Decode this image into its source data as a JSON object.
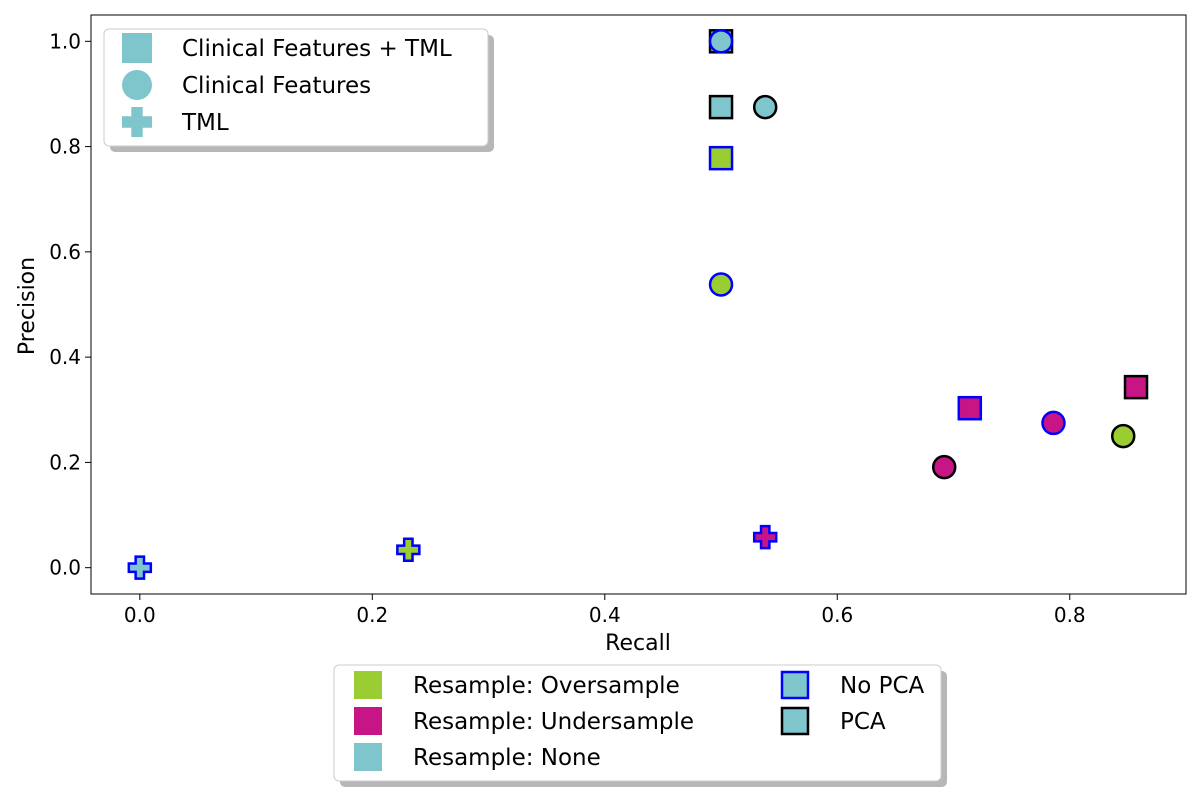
{
  "chart_data": {
    "type": "scatter",
    "xlabel": "Recall",
    "ylabel": "Precision",
    "xlim": [
      -0.042,
      0.9
    ],
    "ylim": [
      -0.05,
      1.05
    ],
    "xticks": [
      0.0,
      0.2,
      0.4,
      0.6,
      0.8
    ],
    "yticks": [
      0.0,
      0.2,
      0.4,
      0.6,
      0.8,
      1.0
    ],
    "xtick_labels": [
      "0.0",
      "0.2",
      "0.4",
      "0.6",
      "0.8"
    ],
    "ytick_labels": [
      "0.0",
      "0.2",
      "0.4",
      "0.6",
      "0.8",
      "1.0"
    ],
    "grid": false,
    "colors": {
      "oversample": "#9acd32",
      "undersample": "#c71585",
      "none": "#7ec5cc",
      "no_pca_edge": "#0000ff",
      "pca_edge": "#000000"
    },
    "points": [
      {
        "x": 0.0,
        "y": 0.0,
        "marker": "plus",
        "resample": "none",
        "pca": "no"
      },
      {
        "x": 0.231,
        "y": 0.034,
        "marker": "plus",
        "resample": "oversample",
        "pca": "no"
      },
      {
        "x": 0.538,
        "y": 0.058,
        "marker": "plus",
        "resample": "undersample",
        "pca": "no"
      },
      {
        "x": 0.5,
        "y": 1.0,
        "marker": "square",
        "resample": "none",
        "pca": "yes"
      },
      {
        "x": 0.5,
        "y": 1.0,
        "marker": "circle",
        "resample": "none",
        "pca": "no"
      },
      {
        "x": 0.5,
        "y": 0.875,
        "marker": "square",
        "resample": "none",
        "pca": "yes"
      },
      {
        "x": 0.538,
        "y": 0.875,
        "marker": "circle",
        "resample": "none",
        "pca": "yes"
      },
      {
        "x": 0.5,
        "y": 0.778,
        "marker": "square",
        "resample": "oversample",
        "pca": "no"
      },
      {
        "x": 0.5,
        "y": 0.538,
        "marker": "circle",
        "resample": "oversample",
        "pca": "no"
      },
      {
        "x": 0.714,
        "y": 0.303,
        "marker": "square",
        "resample": "undersample",
        "pca": "no"
      },
      {
        "x": 0.857,
        "y": 0.343,
        "marker": "square",
        "resample": "undersample",
        "pca": "yes"
      },
      {
        "x": 0.786,
        "y": 0.275,
        "marker": "circle",
        "resample": "undersample",
        "pca": "no"
      },
      {
        "x": 0.846,
        "y": 0.25,
        "marker": "circle",
        "resample": "oversample",
        "pca": "yes"
      },
      {
        "x": 0.692,
        "y": 0.191,
        "marker": "circle",
        "resample": "undersample",
        "pca": "yes"
      }
    ],
    "legend_markers": {
      "placement": "upper-left",
      "entries": [
        {
          "label": "Clinical Features + TML",
          "marker": "square"
        },
        {
          "label": "Clinical Features",
          "marker": "circle"
        },
        {
          "label": "TML",
          "marker": "plus"
        }
      ]
    },
    "legend_style": {
      "placement": "below-center",
      "left_column": [
        {
          "label": "Resample: Oversample",
          "resample": "oversample"
        },
        {
          "label": "Resample: Undersample",
          "resample": "undersample"
        },
        {
          "label": "Resample: None",
          "resample": "none"
        }
      ],
      "right_column": [
        {
          "label": "No PCA",
          "pca": "no"
        },
        {
          "label": "PCA",
          "pca": "yes"
        }
      ]
    }
  }
}
